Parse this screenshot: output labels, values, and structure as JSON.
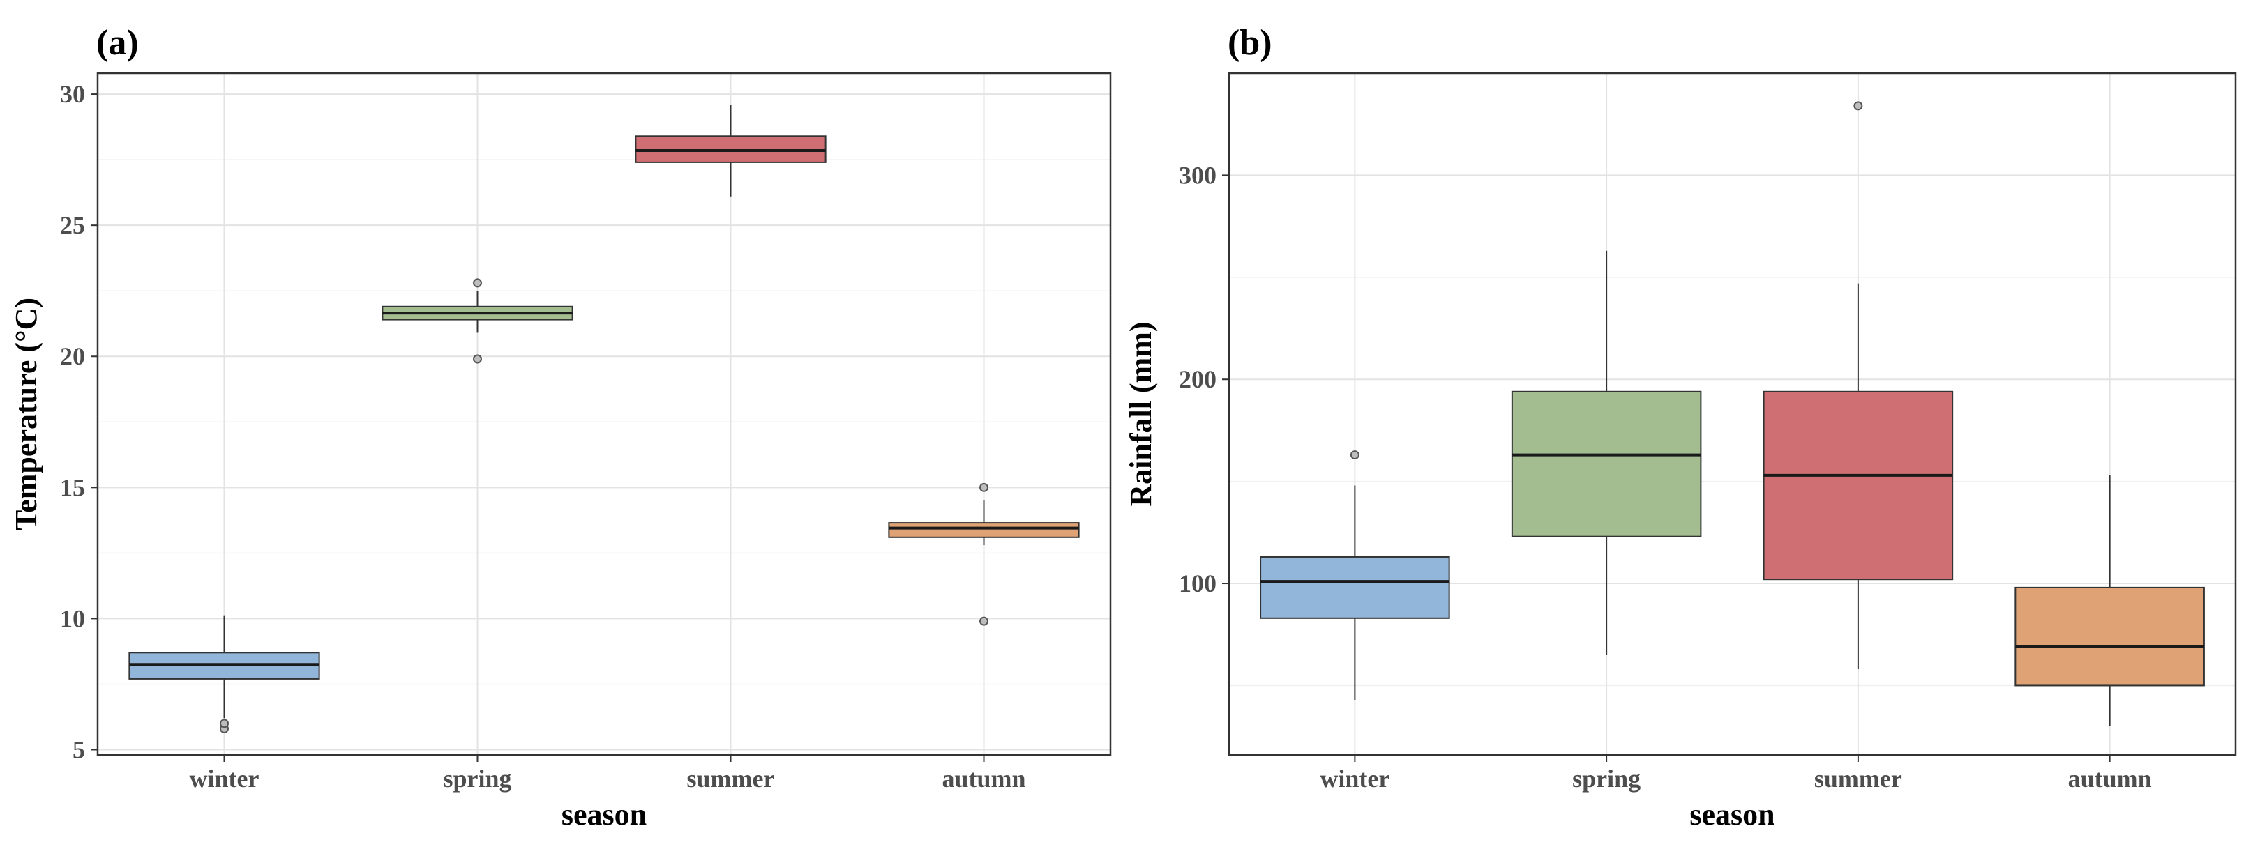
{
  "chart_data": [
    {
      "type": "boxplot",
      "panel_label": "(a)",
      "xlabel": "season",
      "ylabel": "Temperature (°C)",
      "ylim": [
        4.8,
        30.8
      ],
      "yticks": [
        5,
        10,
        15,
        20,
        25,
        30
      ],
      "minor_yticks": [
        7.5,
        12.5,
        17.5,
        22.5,
        27.5
      ],
      "grid": true,
      "categories": [
        "winter",
        "spring",
        "summer",
        "autumn"
      ],
      "boxes": [
        {
          "category": "winter",
          "min": 6.2,
          "q1": 7.7,
          "median": 8.25,
          "q3": 8.7,
          "max": 10.1,
          "outliers": [
            5.8,
            6.0
          ],
          "color": "#92B6DA"
        },
        {
          "category": "spring",
          "min": 20.9,
          "q1": 21.4,
          "median": 21.65,
          "q3": 21.9,
          "max": 22.5,
          "outliers": [
            19.9,
            22.8
          ],
          "color": "#A3BD91"
        },
        {
          "category": "summer",
          "min": 26.1,
          "q1": 27.4,
          "median": 27.85,
          "q3": 28.4,
          "max": 29.6,
          "outliers": [],
          "color": "#D06F73"
        },
        {
          "category": "autumn",
          "min": 12.8,
          "q1": 13.1,
          "median": 13.45,
          "q3": 13.65,
          "max": 14.5,
          "outliers": [
            9.9,
            15.0
          ],
          "color": "#DFA274"
        }
      ]
    },
    {
      "type": "boxplot",
      "panel_label": "(b)",
      "xlabel": "season",
      "ylabel": "Rainfall (mm)",
      "ylim": [
        16,
        350
      ],
      "yticks": [
        100,
        200,
        300
      ],
      "minor_yticks": [
        50,
        150,
        250
      ],
      "grid": true,
      "categories": [
        "winter",
        "spring",
        "summer",
        "autumn"
      ],
      "boxes": [
        {
          "category": "winter",
          "min": 43,
          "q1": 83,
          "median": 101,
          "q3": 113,
          "max": 148,
          "outliers": [
            163
          ],
          "color": "#92B6DA"
        },
        {
          "category": "spring",
          "min": 65,
          "q1": 123,
          "median": 163,
          "q3": 194,
          "max": 263,
          "outliers": [],
          "color": "#A3BD91"
        },
        {
          "category": "summer",
          "min": 58,
          "q1": 102,
          "median": 153,
          "q3": 194,
          "max": 247,
          "outliers": [
            334
          ],
          "color": "#D06F73"
        },
        {
          "category": "autumn",
          "min": 30,
          "q1": 50,
          "median": 69,
          "q3": 98,
          "max": 153,
          "outliers": [],
          "color": "#DFA274"
        }
      ]
    }
  ]
}
